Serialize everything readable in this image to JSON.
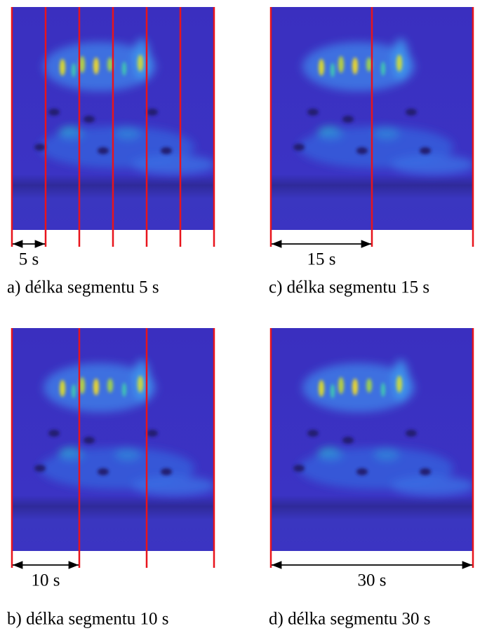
{
  "panels": [
    {
      "caption": "a) délka segmentu 5 s",
      "segment_label": "5 s"
    },
    {
      "caption": "b) délka segmentu 10 s",
      "segment_label": "10 s"
    },
    {
      "caption": "c) délka segmentu 15 s",
      "segment_label": "15 s"
    },
    {
      "caption": "d) délka segmentu 30 s",
      "segment_label": "30 s"
    }
  ]
}
